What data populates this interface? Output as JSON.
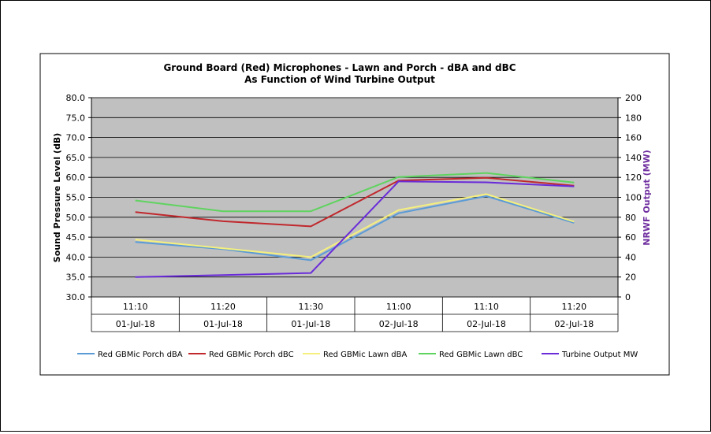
{
  "chart_data": {
    "type": "line",
    "title": "Ground Board (Red) Microphones - Lawn and Porch - dBA and dBC",
    "subtitle": "As Function of Wind Turbine Output",
    "ylabel": "Sound Pressure Level (dB)",
    "y2label": "NRWF Output (MW)",
    "ylim": [
      30,
      80
    ],
    "y2lim": [
      0,
      200
    ],
    "yticks": [
      "80.0",
      "75.0",
      "70.0",
      "65.0",
      "60.0",
      "55.0",
      "50.0",
      "45.0",
      "40.0",
      "35.0",
      "30.0"
    ],
    "y2ticks": [
      "200",
      "180",
      "160",
      "140",
      "120",
      "100",
      "80",
      "60",
      "40",
      "20",
      "0"
    ],
    "categories": [
      {
        "time": "11:10",
        "date": "01-Jul-18"
      },
      {
        "time": "11:20",
        "date": "01-Jul-18"
      },
      {
        "time": "11:30",
        "date": "01-Jul-18"
      },
      {
        "time": "11:00",
        "date": "02-Jul-18"
      },
      {
        "time": "11:10",
        "date": "02-Jul-18"
      },
      {
        "time": "11:20",
        "date": "02-Jul-18"
      }
    ],
    "series": [
      {
        "name": "Red GBMic Porch dBA",
        "color": "#5b9bd5",
        "axis": "left",
        "values": [
          43.8,
          42.0,
          39.2,
          51.0,
          55.3,
          48.6
        ]
      },
      {
        "name": "Red GBMic Porch dBC",
        "color": "#c0282d",
        "axis": "left",
        "values": [
          51.3,
          49.0,
          47.7,
          59.2,
          59.9,
          57.9
        ]
      },
      {
        "name": "Red GBMic Lawn dBA",
        "color": "#f5f07e",
        "axis": "left",
        "values": [
          44.4,
          42.2,
          40.0,
          51.8,
          55.8,
          48.9
        ]
      },
      {
        "name": "Red GBMic Lawn dBC",
        "color": "#5fd35f",
        "axis": "left",
        "values": [
          54.2,
          51.5,
          51.5,
          60.1,
          61.1,
          58.7
        ]
      },
      {
        "name": "Turbine Output MW",
        "color": "#6a2bd9",
        "axis": "right",
        "values": [
          20,
          22,
          24,
          116,
          115,
          111
        ]
      }
    ]
  }
}
